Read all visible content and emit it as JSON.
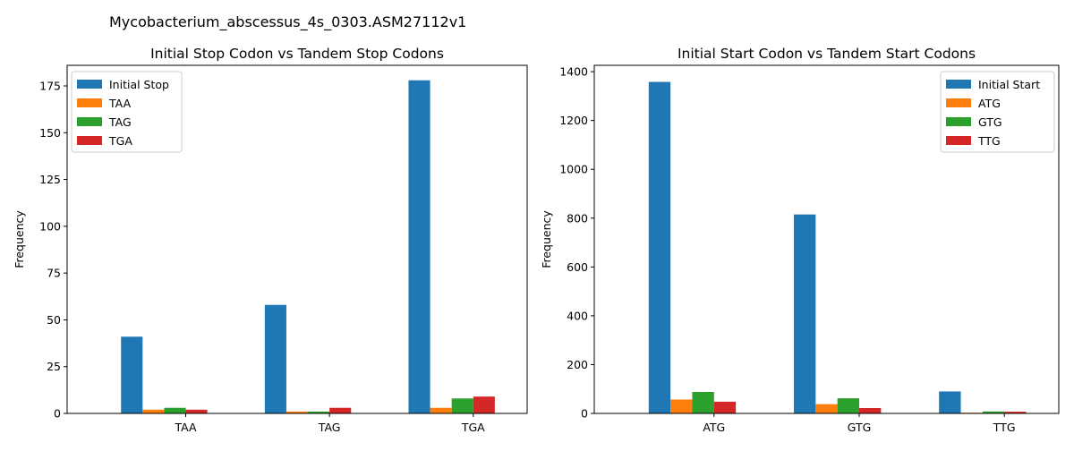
{
  "figure": {
    "suptitle": "Mycobacterium_abscessus_4s_0303.ASM27112v1"
  },
  "colors": {
    "c0": "#1f77b4",
    "c1": "#ff7f0e",
    "c2": "#2ca02c",
    "c3": "#d62728"
  },
  "chart_data": [
    {
      "type": "bar",
      "title": "Initial Stop Codon vs Tandem Stop Codons",
      "xlabel": "",
      "ylabel": "Frequency",
      "categories": [
        "TAA",
        "TAG",
        "TGA"
      ],
      "ylim": [
        0,
        186
      ],
      "yticks": [
        0,
        25,
        50,
        75,
        100,
        125,
        150,
        175
      ],
      "legend_position": "upper left",
      "series": [
        {
          "name": "Initial Stop",
          "color": "#1f77b4",
          "values": [
            41,
            58,
            178
          ]
        },
        {
          "name": "TAA",
          "color": "#ff7f0e",
          "values": [
            2,
            1,
            3
          ]
        },
        {
          "name": "TAG",
          "color": "#2ca02c",
          "values": [
            3,
            1,
            8
          ]
        },
        {
          "name": "TGA",
          "color": "#d62728",
          "values": [
            2,
            3,
            9
          ]
        }
      ]
    },
    {
      "type": "bar",
      "title": "Initial Start Codon vs Tandem Start Codons",
      "xlabel": "",
      "ylabel": "Frequency",
      "categories": [
        "ATG",
        "GTG",
        "TTG"
      ],
      "ylim": [
        0,
        1426
      ],
      "yticks": [
        0,
        200,
        400,
        600,
        800,
        1000,
        1200,
        1400
      ],
      "legend_position": "upper right",
      "series": [
        {
          "name": "Initial Start",
          "color": "#1f77b4",
          "values": [
            1358,
            815,
            90
          ]
        },
        {
          "name": "ATG",
          "color": "#ff7f0e",
          "values": [
            57,
            38,
            3
          ]
        },
        {
          "name": "GTG",
          "color": "#2ca02c",
          "values": [
            88,
            62,
            8
          ]
        },
        {
          "name": "TTG",
          "color": "#d62728",
          "values": [
            48,
            22,
            7
          ]
        }
      ]
    }
  ]
}
